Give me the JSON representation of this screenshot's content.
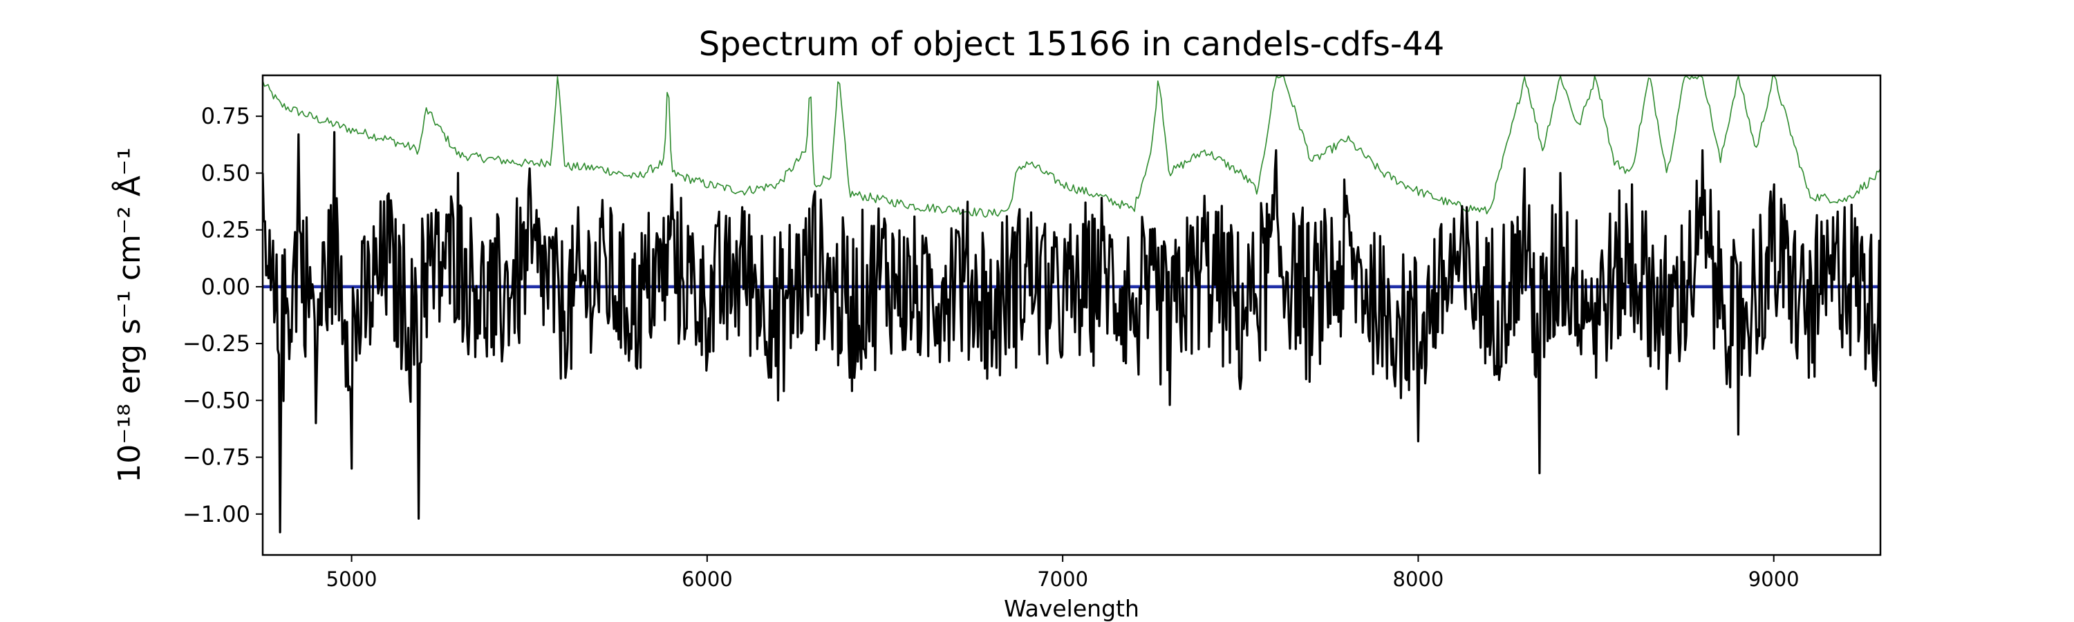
{
  "chart_data": {
    "type": "line",
    "title": "Spectrum of object 15166 in candels-cdfs-44",
    "xlabel": "Wavelength",
    "ylabel": "10⁻¹⁸ erg s⁻¹ cm⁻² Å⁻¹",
    "xlim": [
      4750,
      9300
    ],
    "ylim": [
      -1.18,
      0.93
    ],
    "x_ticks": [
      5000,
      6000,
      7000,
      8000,
      9000
    ],
    "y_ticks": [
      0.75,
      0.5,
      0.25,
      0.0,
      -0.25,
      -0.5,
      -0.75,
      -1.0
    ],
    "y_tick_labels": [
      "0.75",
      "0.50",
      "0.25",
      "0.00",
      "−0.25",
      "−0.50",
      "−0.75",
      "−1.00"
    ],
    "grid": false,
    "series": [
      {
        "color": "#2e8b2e",
        "style": "thin",
        "x": [
          4750,
          4800,
          4900,
          5000,
          5100,
          5190,
          5210,
          5300,
          5400,
          5500,
          5560,
          5580,
          5600,
          5700,
          5800,
          5880,
          5890,
          5900,
          6000,
          6100,
          6200,
          6280,
          6290,
          6300,
          6350,
          6370,
          6400,
          6500,
          6600,
          6700,
          6800,
          6850,
          6870,
          6900,
          7000,
          7100,
          7200,
          7250,
          7270,
          7300,
          7400,
          7500,
          7550,
          7600,
          7620,
          7700,
          7800,
          7900,
          8000,
          8100,
          8200,
          8280,
          8300,
          8350,
          8400,
          8450,
          8500,
          8550,
          8600,
          8650,
          8700,
          8750,
          8800,
          8850,
          8900,
          8950,
          9000,
          9100,
          9200,
          9300
        ],
        "y": [
          0.9,
          0.8,
          0.74,
          0.69,
          0.65,
          0.6,
          0.78,
          0.58,
          0.56,
          0.54,
          0.55,
          0.93,
          0.53,
          0.52,
          0.48,
          0.55,
          0.93,
          0.5,
          0.45,
          0.42,
          0.45,
          0.6,
          0.93,
          0.44,
          0.5,
          0.93,
          0.41,
          0.38,
          0.35,
          0.34,
          0.32,
          0.34,
          0.5,
          0.55,
          0.45,
          0.4,
          0.34,
          0.6,
          0.93,
          0.5,
          0.6,
          0.5,
          0.42,
          0.93,
          0.93,
          0.55,
          0.65,
          0.5,
          0.42,
          0.36,
          0.33,
          0.8,
          0.93,
          0.6,
          0.93,
          0.7,
          0.93,
          0.55,
          0.5,
          0.93,
          0.5,
          0.93,
          0.93,
          0.55,
          0.93,
          0.6,
          0.93,
          0.4,
          0.38,
          0.5
        ]
      },
      {
        "color": "#000000",
        "style": "noisy",
        "x": [
          4750,
          4800,
          4850,
          4900,
          4950,
          5000,
          5100,
          5190,
          5200,
          5300,
          5400,
          5500,
          5600,
          5700,
          5800,
          5900,
          6000,
          6100,
          6200,
          6300,
          6400,
          6500,
          6600,
          6700,
          6800,
          6900,
          7000,
          7100,
          7200,
          7300,
          7400,
          7500,
          7600,
          7700,
          7800,
          7900,
          8000,
          8100,
          8200,
          8300,
          8340,
          8400,
          8500,
          8600,
          8700,
          8800,
          8900,
          9000,
          9100,
          9200,
          9300
        ],
        "y": [
          0.5,
          -1.08,
          0.67,
          -0.6,
          0.68,
          -0.8,
          0.4,
          -1.02,
          0.3,
          0.5,
          -0.3,
          0.52,
          -0.4,
          0.3,
          -0.35,
          0.45,
          -0.3,
          0.35,
          -0.5,
          0.4,
          -0.4,
          0.3,
          -0.3,
          0.25,
          -0.35,
          0.3,
          -0.3,
          0.25,
          -0.2,
          -0.52,
          0.4,
          -0.45,
          0.6,
          -0.3,
          0.4,
          -0.35,
          -0.68,
          0.3,
          -0.3,
          0.52,
          -0.82,
          0.5,
          -0.4,
          0.45,
          -0.45,
          0.6,
          -0.65,
          0.45,
          -0.4,
          0.35,
          -0.37
        ]
      },
      {
        "color": "#1f2fa8",
        "style": "flat",
        "x": [
          4750,
          9300
        ],
        "y": [
          0.0,
          0.0
        ]
      }
    ]
  }
}
